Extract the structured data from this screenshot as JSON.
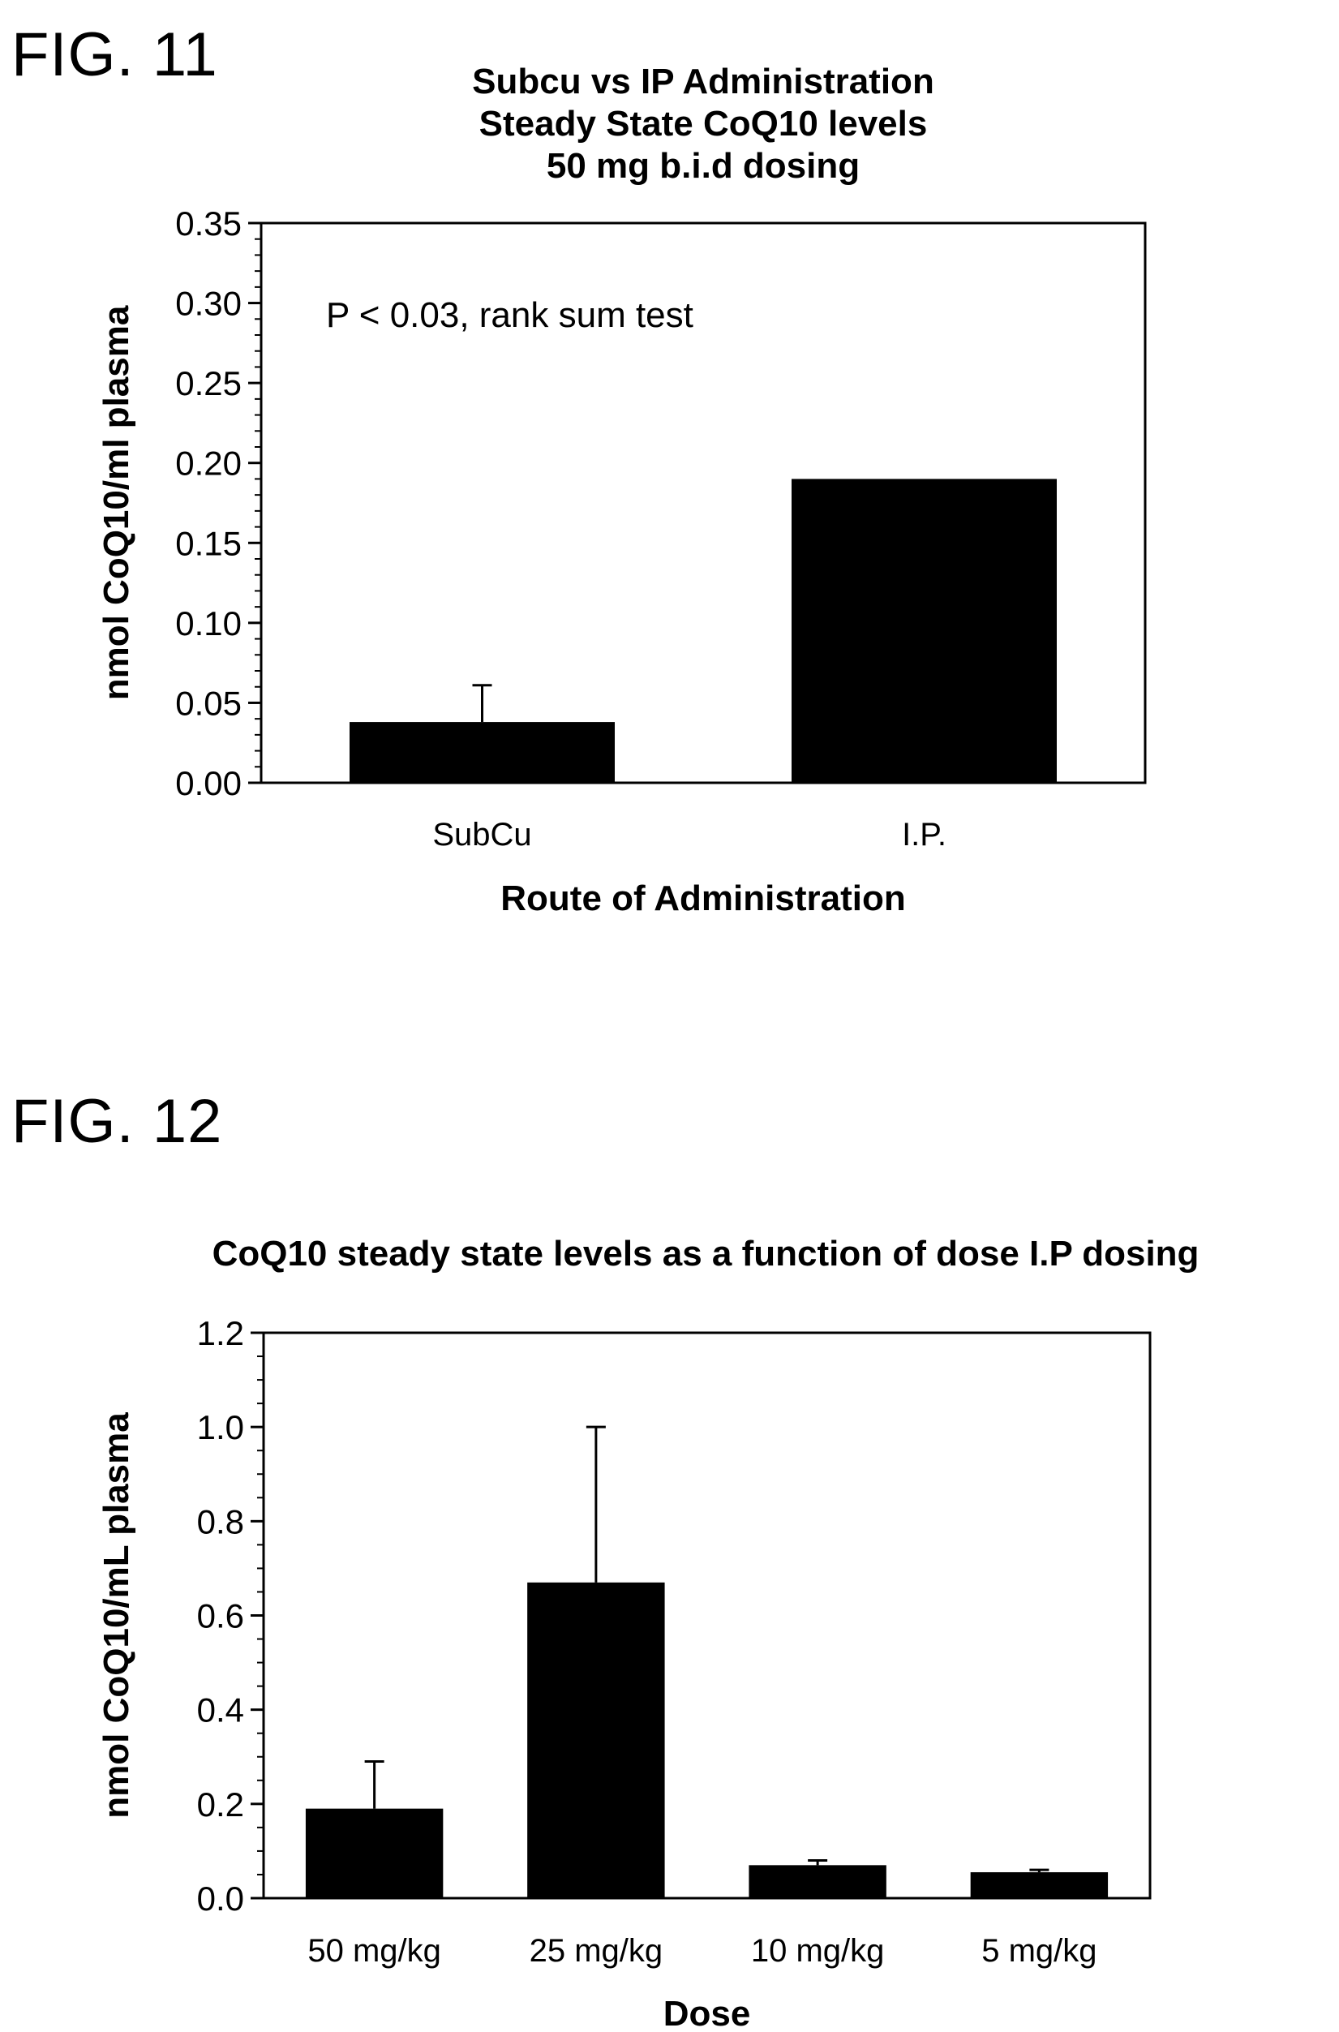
{
  "fig11": {
    "label": "FIG. 11",
    "chart_data": {
      "type": "bar",
      "title": [
        "Subcu vs IP Administration",
        "Steady State CoQ10 levels",
        "50 mg b.i.d dosing"
      ],
      "xlabel": "Route of Administration",
      "ylabel": "nmol CoQ10/ml plasma",
      "categories": [
        "SubCu",
        "I.P."
      ],
      "values": [
        0.038,
        0.19
      ],
      "error_plus": [
        0.023,
        null
      ],
      "ylim": [
        0,
        0.35
      ],
      "yticks": [
        "0.00",
        "0.05",
        "0.10",
        "0.15",
        "0.20",
        "0.25",
        "0.30",
        "0.35"
      ],
      "annotation": "P < 0.03, rank sum test",
      "grid": false,
      "bar_color": "#000000"
    }
  },
  "fig12": {
    "label": "FIG. 12",
    "chart_data": {
      "type": "bar",
      "title": [
        "CoQ10 steady state levels as a function of dose I.P dosing"
      ],
      "xlabel": "Dose",
      "ylabel": "nmol CoQ10/mL plasma",
      "categories": [
        "50 mg/kg",
        "25 mg/kg",
        "10 mg/kg",
        "5 mg/kg"
      ],
      "values": [
        0.19,
        0.67,
        0.07,
        0.055
      ],
      "error_plus": [
        0.1,
        0.33,
        0.01,
        0.005
      ],
      "ylim": [
        0,
        1.2
      ],
      "yticks": [
        "0.0",
        "0.2",
        "0.4",
        "0.6",
        "0.8",
        "1.0",
        "1.2"
      ],
      "grid": false,
      "bar_color": "#000000"
    }
  }
}
